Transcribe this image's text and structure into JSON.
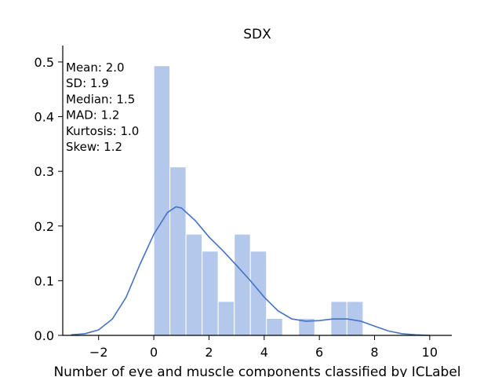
{
  "chart_data": {
    "type": "bar",
    "title": "SDX",
    "xlabel": "Number of eye and muscle components classified by ICLabel",
    "ylabel": "",
    "xlim": [
      -3.3,
      10.8
    ],
    "ylim": [
      0,
      0.53
    ],
    "xticks": [
      "−2",
      "0",
      "2",
      "4",
      "6",
      "8",
      "10"
    ],
    "xtick_values": [
      -2,
      0,
      2,
      4,
      6,
      8,
      10
    ],
    "yticks": [
      "0.0",
      "0.1",
      "0.2",
      "0.3",
      "0.4",
      "0.5"
    ],
    "ytick_values": [
      0.0,
      0.1,
      0.2,
      0.3,
      0.4,
      0.5
    ],
    "histogram": {
      "bin_edges": [
        0.0,
        0.5833,
        1.1667,
        1.75,
        2.3333,
        2.9167,
        3.5,
        4.0833,
        4.6667,
        5.25,
        5.8333,
        6.4167,
        7.0,
        7.5833
      ],
      "values": [
        0.493,
        0.308,
        0.185,
        0.154,
        0.062,
        0.185,
        0.154,
        0.031,
        0.0,
        0.031,
        0.0,
        0.062,
        0.062
      ]
    },
    "kde": {
      "x": [
        -3.0,
        -2.5,
        -2.0,
        -1.5,
        -1.0,
        -0.5,
        0.0,
        0.5,
        0.8,
        1.0,
        1.5,
        2.0,
        2.5,
        3.0,
        3.5,
        4.0,
        4.5,
        5.0,
        5.5,
        6.0,
        6.5,
        7.0,
        7.5,
        8.0,
        8.5,
        9.0,
        9.5,
        10.0
      ],
      "y": [
        0.001,
        0.003,
        0.01,
        0.03,
        0.07,
        0.13,
        0.185,
        0.225,
        0.235,
        0.233,
        0.21,
        0.18,
        0.155,
        0.128,
        0.1,
        0.07,
        0.045,
        0.03,
        0.026,
        0.027,
        0.03,
        0.03,
        0.026,
        0.017,
        0.008,
        0.003,
        0.001,
        0.0
      ]
    },
    "stats": [
      "Mean: 2.0",
      "SD: 1.9",
      "Median: 1.5",
      "MAD: 1.2",
      "Kurtosis: 1.0",
      "Skew: 1.2"
    ],
    "colors": {
      "bar": "#b4c8ec",
      "bar_edge": "#ffffff",
      "kde": "#4472c4",
      "axis": "#000000"
    },
    "grid": false,
    "legend": "none"
  }
}
